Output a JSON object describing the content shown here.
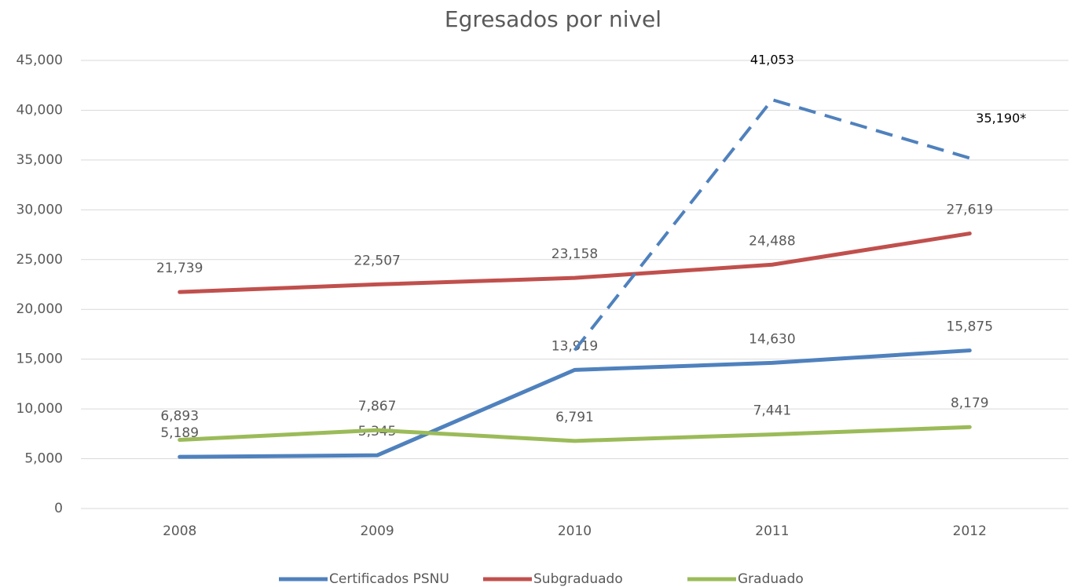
{
  "chart_data": {
    "type": "line",
    "title": "Egresados por nivel",
    "categories": [
      "2008",
      "2009",
      "2010",
      "2011",
      "2012"
    ],
    "series": [
      {
        "name": "Certificados PSNU",
        "color": "#4f81bd",
        "values": [
          5189,
          5345,
          13919,
          14630,
          15875
        ],
        "value_labels": [
          "5,189",
          "5,345",
          "13,919",
          "14,630",
          "15,875"
        ]
      },
      {
        "name": "Subgraduado",
        "color": "#c0504d",
        "values": [
          21739,
          22507,
          23158,
          24488,
          27619
        ],
        "value_labels": [
          "21,739",
          "22,507",
          "23,158",
          "24,488",
          "27,619"
        ]
      },
      {
        "name": "Graduado",
        "color": "#9bbb59",
        "values": [
          6893,
          7867,
          6791,
          7441,
          8179
        ],
        "value_labels": [
          "6,893",
          "7,867",
          "6,791",
          "7,441",
          "8,179"
        ]
      },
      {
        "color": "#4f81bd",
        "dashed": true,
        "values": [
          null,
          null,
          15900,
          41053,
          35190
        ],
        "value_labels": [
          null,
          null,
          null,
          "41,053",
          "35,190*"
        ]
      }
    ],
    "ylim": [
      0,
      45000
    ],
    "yticks": [
      0,
      {
        "value": 5000,
        "label": "5,000"
      },
      {
        "value": 10000,
        "label": "10,000"
      },
      {
        "value": 15000,
        "label": "15,000"
      },
      {
        "value": 20000,
        "label": "20,000"
      },
      {
        "value": 25000,
        "label": "25,000"
      },
      {
        "value": 30000,
        "label": "30,000"
      },
      {
        "value": 35000,
        "label": "35,000"
      },
      {
        "value": 40000,
        "label": "40,000"
      },
      {
        "value": 45000,
        "label": "45,000"
      }
    ],
    "grid": true,
    "legend": "bottom"
  }
}
